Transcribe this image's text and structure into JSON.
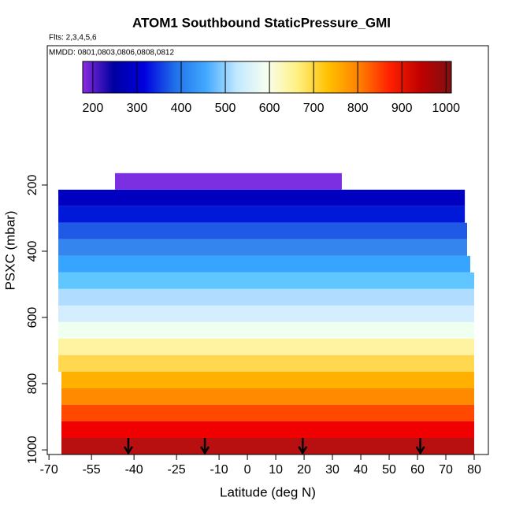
{
  "chart_data": {
    "type": "curtain",
    "title": "ATOM1 Southbound StaticPressure_GMI",
    "subtitle": "Flts: 2,3,4,5,6",
    "annotation": "MMDD: 0801,0803,0806,0808,0812",
    "x_label": "Latitude (deg N)",
    "y_label": "PSXC (mbar)",
    "xlim": [
      -70.6,
      85
    ],
    "xticks": [
      -70,
      -55,
      -40,
      -25,
      -10,
      0,
      10,
      20,
      30,
      40,
      50,
      60,
      70,
      80
    ],
    "ylim": [
      1014,
      -221
    ],
    "yticks": [
      200,
      400,
      600,
      800,
      1000
    ],
    "colorbar": {
      "lim": [
        177,
        1012
      ],
      "ticks": [
        200,
        300,
        400,
        500,
        600,
        700,
        800,
        900,
        1000
      ],
      "colors": [
        "#8a2be2",
        "#0000a0",
        "#0000e0",
        "#2070e8",
        "#40a8ff",
        "#c0e8ff",
        "#f8fff0",
        "#fff080",
        "#ffc000",
        "#ff8000",
        "#ff2000",
        "#c00000",
        "#801010"
      ]
    },
    "bands": [
      {
        "top": 164,
        "bottom": 214,
        "lat": [
          -46.7,
          33.3
        ],
        "value": 189,
        "color": "#7b2fe0"
      },
      {
        "top": 214,
        "bottom": 264,
        "lat": [
          -66.7,
          76.7
        ],
        "value": 239,
        "color": "#0000c0"
      },
      {
        "top": 264,
        "bottom": 314,
        "lat": [
          -66.7,
          76.7
        ],
        "value": 289,
        "color": "#0018d8"
      },
      {
        "top": 314,
        "bottom": 364,
        "lat": [
          -66.7,
          77.5
        ],
        "value": 339,
        "color": "#1e5ae6"
      },
      {
        "top": 364,
        "bottom": 414,
        "lat": [
          -66.7,
          77.5
        ],
        "value": 389,
        "color": "#3585ee"
      },
      {
        "top": 414,
        "bottom": 464,
        "lat": [
          -66.7,
          78.6
        ],
        "value": 439,
        "color": "#35a5ff"
      },
      {
        "top": 464,
        "bottom": 514,
        "lat": [
          -66.7,
          80
        ],
        "value": 489,
        "color": "#60c6ff"
      },
      {
        "top": 514,
        "bottom": 564,
        "lat": [
          -66.7,
          80
        ],
        "value": 539,
        "color": "#b0dcff"
      },
      {
        "top": 564,
        "bottom": 614,
        "lat": [
          -66.7,
          80
        ],
        "value": 589,
        "color": "#d4eeff"
      },
      {
        "top": 614,
        "bottom": 664,
        "lat": [
          -66.7,
          80
        ],
        "value": 639,
        "color": "#effff0"
      },
      {
        "top": 664,
        "bottom": 714,
        "lat": [
          -66.7,
          80
        ],
        "value": 689,
        "color": "#fff2a0"
      },
      {
        "top": 714,
        "bottom": 764,
        "lat": [
          -66.7,
          80
        ],
        "value": 739,
        "color": "#ffd850"
      },
      {
        "top": 764,
        "bottom": 814,
        "lat": [
          -65.6,
          80
        ],
        "value": 789,
        "color": "#ffb000"
      },
      {
        "top": 814,
        "bottom": 864,
        "lat": [
          -65.6,
          80
        ],
        "value": 839,
        "color": "#ff8a00"
      },
      {
        "top": 864,
        "bottom": 914,
        "lat": [
          -65.6,
          80
        ],
        "value": 889,
        "color": "#ff4800"
      },
      {
        "top": 914,
        "bottom": 964,
        "lat": [
          -65.6,
          80
        ],
        "value": 939,
        "color": "#f00000"
      },
      {
        "top": 964,
        "bottom": 1014,
        "lat": [
          -65.6,
          80
        ],
        "value": 989,
        "color": "#b81010"
      }
    ],
    "arrows": [
      -42,
      -15,
      19.5,
      61
    ]
  }
}
